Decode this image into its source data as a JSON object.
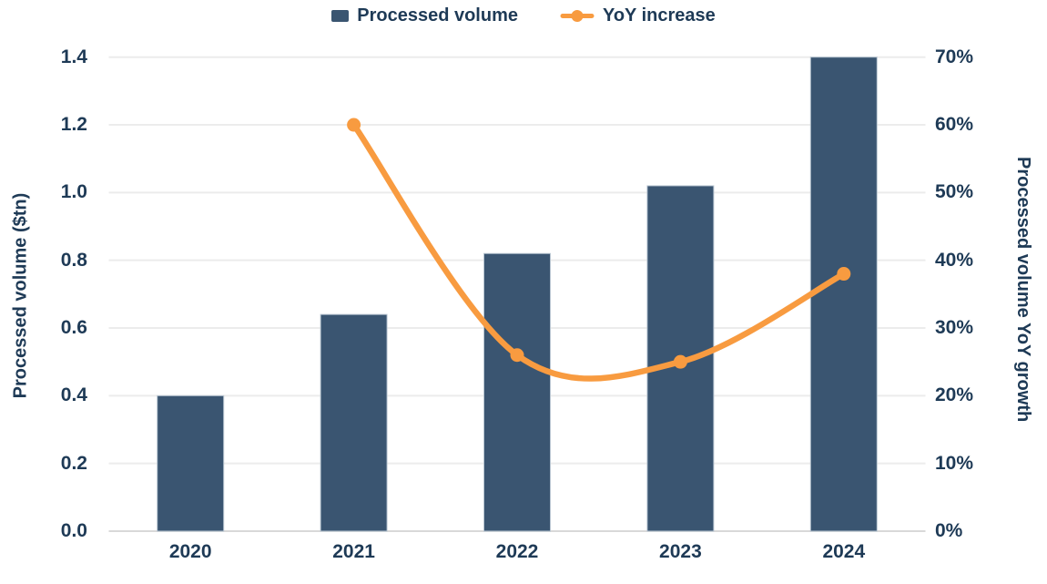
{
  "legend": {
    "items": [
      {
        "label": "Processed volume",
        "marker": "bar-square",
        "color": "#3A5571"
      },
      {
        "label": "YoY increase",
        "marker": "line-dot",
        "color": "#F89B40"
      }
    ]
  },
  "left_axis": {
    "title": "Processed volume ($tn)",
    "ticks": [
      "1.4",
      "1.2",
      "1.0",
      "0.8",
      "0.6",
      "0.4",
      "0.2",
      "0.0"
    ]
  },
  "right_axis": {
    "title": "Processed volume YoY growth",
    "ticks": [
      "70%",
      "60%",
      "50%",
      "40%",
      "30%",
      "20%",
      "10%",
      "0%"
    ]
  },
  "x_axis": {
    "categories": [
      "2020",
      "2021",
      "2022",
      "2023",
      "2024"
    ]
  },
  "chart_data": {
    "type": "bar+line",
    "title": "",
    "categories": [
      "2020",
      "2021",
      "2022",
      "2023",
      "2024"
    ],
    "series": [
      {
        "name": "Processed volume",
        "type": "bar",
        "axis": "left",
        "color": "#3A5571",
        "values": [
          0.4,
          0.64,
          0.82,
          1.02,
          1.4
        ]
      },
      {
        "name": "YoY increase",
        "type": "line",
        "axis": "right",
        "color": "#F89B40",
        "values": [
          null,
          60,
          26,
          25,
          38
        ],
        "unit": "%"
      }
    ],
    "left_ylabel": "Processed volume ($tn)",
    "right_ylabel": "Processed volume YoY growth",
    "left_ylim": [
      0,
      1.4
    ],
    "right_ylim": [
      0,
      70
    ],
    "left_tick_step": 0.2,
    "right_tick_step": 10,
    "grid": true,
    "legend_position": "top"
  },
  "colors": {
    "bar": "#3A5571",
    "bar_edge": "#B9C6D2",
    "line": "#F89B40",
    "text": "#1E3A56",
    "gridline": "#ECECEC",
    "baseline": "#D9D9D9",
    "background": "#FFFFFF"
  }
}
